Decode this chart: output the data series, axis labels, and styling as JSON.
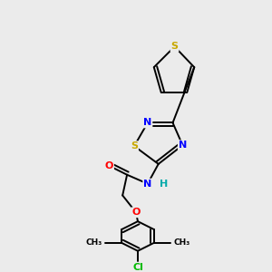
{
  "background_color": "#ebebeb",
  "bond_color": "#000000",
  "atom_colors": {
    "S": "#c8a800",
    "N": "#0000ff",
    "O": "#ff0000",
    "Cl": "#00bb00",
    "C": "#000000",
    "H": "#00aaaa"
  },
  "figsize": [
    3.0,
    3.0
  ],
  "dpi": 100
}
